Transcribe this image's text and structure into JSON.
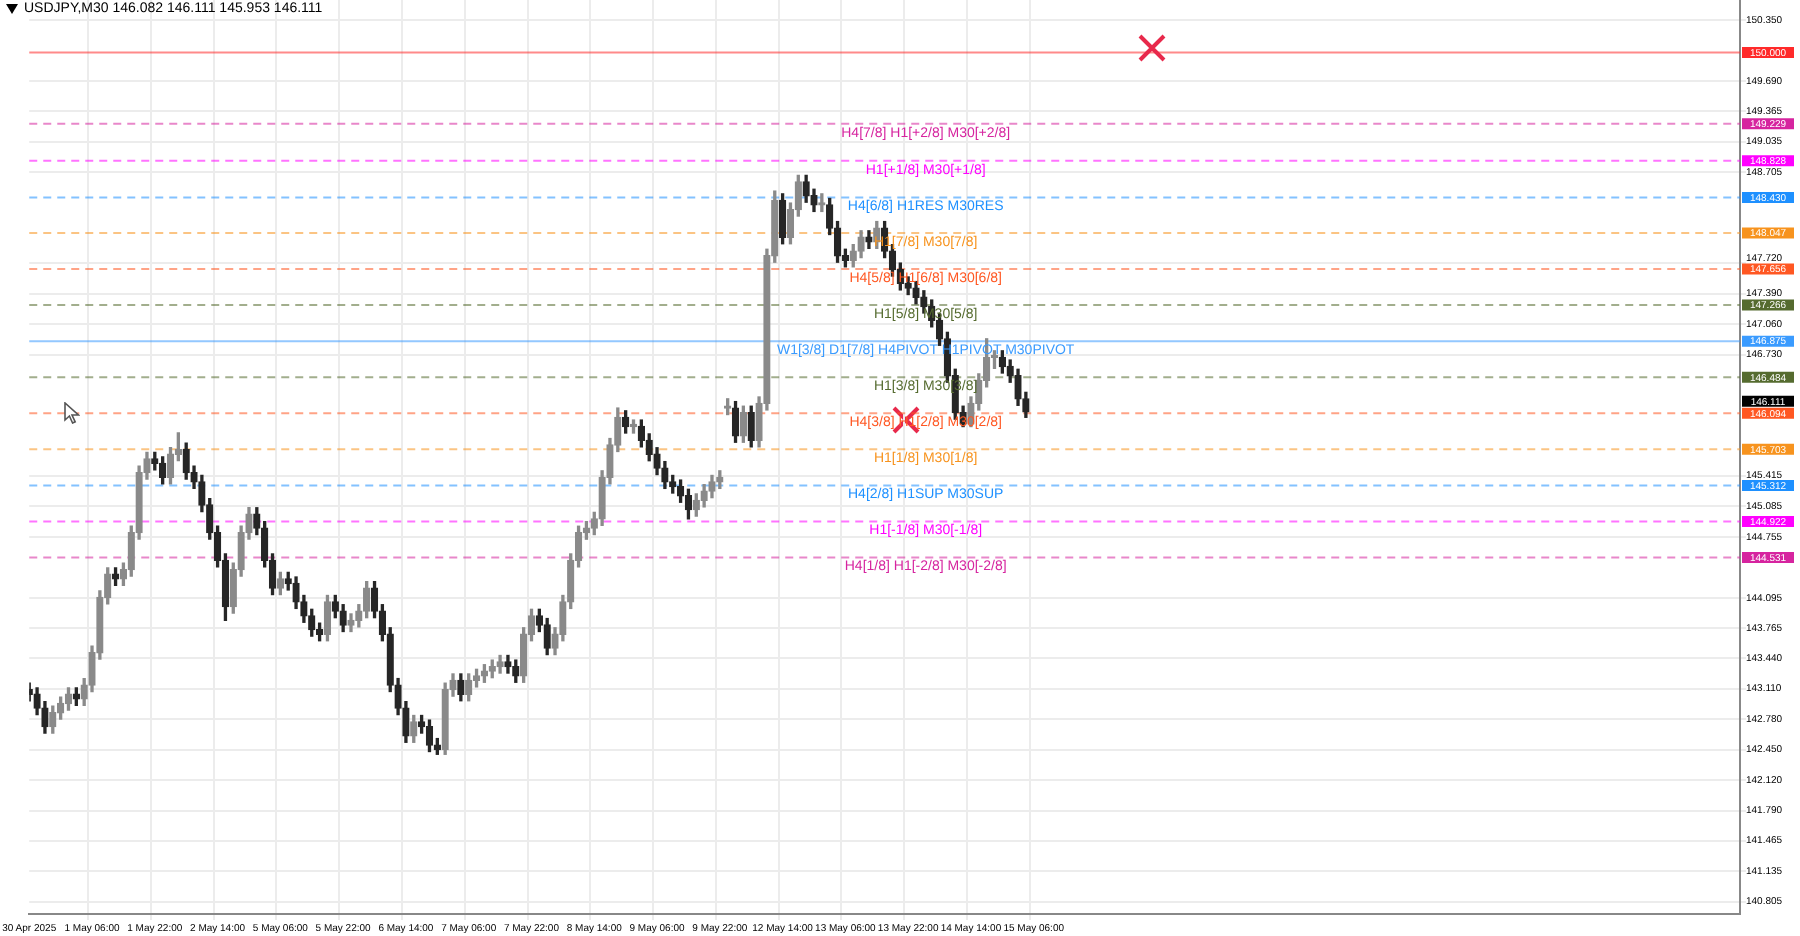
{
  "chart_data": {
    "type": "candlestick",
    "title": "USDJPY,M30  146.082 146.111 145.953 146.111",
    "colors": [
      "#262626",
      "#262626",
      "#262626",
      "#8a8a8a",
      "#8a8a8a",
      "#8a8a8a",
      "#262626",
      "#8a8a8a",
      "#8a8a8a",
      "#8a8a8a",
      "#8a8a8a",
      "#262626",
      "#8a8a8a",
      "#8a8a8a",
      "#8a8a8a",
      "#8a8a8a",
      "#262626",
      "#262626",
      "#8a8a8a",
      "#8a8a8a",
      "#262626",
      "#262626",
      "#262626",
      "#262626",
      "#262626",
      "#262626",
      "#8a8a8a",
      "#8a8a8a",
      "#8a8a8a",
      "#262626",
      "#262626",
      "#262626",
      "#8a8a8a",
      "#262626",
      "#262626",
      "#262626",
      "#262626",
      "#262626",
      "#8a8a8a",
      "#262626",
      "#262626",
      "#8a8a8a",
      "#8a8a8a",
      "#8a8a8a",
      "#262626",
      "#262626",
      "#262626",
      "#262626",
      "#262626",
      "#8a8a8a",
      "#262626",
      "#262626",
      "#262626",
      "#8a8a8a",
      "#8a8a8a",
      "#262626",
      "#8a8a8a",
      "#8a8a8a",
      "#8a8a8a",
      "#8a8a8a",
      "#8a8a8a",
      "#262626",
      "#262626",
      "#8a8a8a",
      "#8a8a8a",
      "#262626",
      "#262626",
      "#8a8a8a",
      "#8a8a8a",
      "#8a8a8a",
      "#8a8a8a",
      "#8a8a8a",
      "#8a8a8a",
      "#8a8a8a",
      "#8a8a8a",
      "#8a8a8a",
      "#262626",
      "#8a8a8a",
      "#262626",
      "#262626",
      "#262626",
      "#262626",
      "#262626",
      "#262626",
      "#262626",
      "#8a8a8a",
      "#8a8a8a",
      "#8a8a8a",
      "#8a8a8a",
      "#8a8a8a",
      "#262626",
      "#8a8a8a",
      "#262626",
      "#8a8a8a",
      "#8a8a8a",
      "#8a8a8a",
      "#262626",
      "#8a8a8a",
      "#8a8a8a",
      "#262626",
      "#262626",
      "#8a8a8a",
      "#262626",
      "#262626",
      "#262626",
      "#8a8a8a",
      "#8a8a8a",
      "#262626",
      "#8a8a8a",
      "#262626",
      "#262626",
      "#262626",
      "#262626",
      "#262626",
      "#262626",
      "#262626",
      "#262626",
      "#262626",
      "#262626",
      "#262626",
      "#8a8a8a",
      "#8a8a8a",
      "#8a8a8a",
      "#8a8a8a",
      "#262626",
      "#262626",
      "#262626",
      "#262626",
      null,
      null,
      null,
      null,
      null,
      null,
      null,
      null,
      null,
      null,
      null,
      null,
      null,
      null,
      null,
      null,
      null,
      null,
      null,
      null,
      null,
      null,
      null,
      null,
      null,
      null,
      null,
      null,
      null,
      null,
      null,
      null,
      null,
      null,
      null,
      null,
      null,
      null,
      null,
      null,
      null,
      null,
      null,
      null,
      null,
      null,
      null,
      null,
      null,
      null,
      null,
      null,
      null,
      null,
      null,
      null,
      null,
      null,
      null,
      null,
      null,
      null,
      null,
      null,
      null,
      null,
      null,
      null,
      null,
      null,
      null,
      null,
      null,
      null,
      null,
      null,
      null,
      null,
      null,
      null,
      null,
      null,
      null,
      null,
      null,
      null,
      null,
      null,
      null,
      null,
      null
    ],
    "categories": [
      "30 Apr 2025",
      null,
      null,
      null,
      null,
      null,
      null,
      null,
      "1 May 06:00",
      null,
      null,
      null,
      null,
      null,
      null,
      null,
      "1 May 22:00",
      null,
      null,
      null,
      null,
      null,
      null,
      null,
      "2 May 14:00",
      null,
      null,
      null,
      null,
      null,
      null,
      null,
      "5 May 06:00",
      null,
      null,
      null,
      null,
      null,
      null,
      null,
      "5 May 22:00",
      null,
      null,
      null,
      null,
      null,
      null,
      null,
      "6 May 14:00",
      null,
      null,
      null,
      null,
      null,
      null,
      null,
      "7 May 06:00",
      null,
      null,
      null,
      null,
      null,
      null,
      null,
      "7 May 22:00",
      null,
      null,
      null,
      null,
      null,
      null,
      null,
      "8 May 14:00",
      null,
      null,
      null,
      null,
      null,
      null,
      null,
      "9 May 06:00",
      null,
      null,
      null,
      null,
      null,
      null,
      null,
      "9 May 22:00",
      null,
      null,
      null,
      null,
      null,
      null,
      null,
      "12 May 14:00",
      null,
      null,
      null,
      null,
      null,
      null,
      null,
      "13 May 06:00",
      null,
      null,
      null,
      null,
      null,
      null,
      null,
      "13 May 22:00",
      null,
      null,
      null,
      null,
      null,
      null,
      null,
      "14 May 14:00",
      null,
      null,
      null,
      null,
      null,
      null,
      null,
      "15 May 06:00",
      null,
      null,
      null,
      null,
      null,
      null,
      null,
      null,
      null,
      null,
      null,
      null,
      null,
      null,
      null,
      null,
      null,
      null,
      null,
      null,
      null,
      null,
      null,
      null,
      null,
      null,
      null,
      null,
      null,
      null,
      null,
      null,
      null,
      null,
      null,
      null,
      null,
      null,
      null,
      null,
      null,
      null,
      null,
      null,
      null,
      null,
      null,
      null,
      null,
      null,
      null,
      null,
      null,
      null,
      null,
      null,
      null,
      null,
      null,
      null,
      null,
      null,
      null,
      null,
      null,
      null,
      null,
      null,
      null,
      null,
      null,
      null,
      null,
      null,
      null,
      null,
      null,
      null,
      null,
      null,
      null,
      null,
      null,
      null,
      null,
      null,
      null,
      null,
      null,
      null
    ],
    "ohlc": [
      [
        143.1,
        143.17,
        142.98,
        143.05
      ],
      [
        143.05,
        143.12,
        142.83,
        142.9
      ],
      [
        142.9,
        142.97,
        142.63,
        142.7
      ],
      [
        142.7,
        142.92,
        142.63,
        142.85
      ],
      [
        142.85,
        143.02,
        142.78,
        142.95
      ],
      [
        142.95,
        143.12,
        142.88,
        143.05
      ],
      [
        143.05,
        143.12,
        142.93,
        143.0
      ],
      [
        143.0,
        143.22,
        142.93,
        143.15
      ],
      [
        143.15,
        143.57,
        143.08,
        143.5
      ],
      [
        143.5,
        144.17,
        143.43,
        144.1
      ],
      [
        144.1,
        144.42,
        144.03,
        144.35
      ],
      [
        144.35,
        144.42,
        144.23,
        144.3
      ],
      [
        144.3,
        144.47,
        144.23,
        144.4
      ],
      [
        144.4,
        144.87,
        144.33,
        144.8
      ],
      [
        144.8,
        145.52,
        144.73,
        145.45
      ],
      [
        145.45,
        145.67,
        145.38,
        145.6
      ],
      [
        145.6,
        145.67,
        145.48,
        145.55
      ],
      [
        145.55,
        145.62,
        145.33,
        145.4
      ],
      [
        145.4,
        145.72,
        145.33,
        145.65
      ],
      [
        145.65,
        145.88,
        145.58,
        145.7
      ],
      [
        145.7,
        145.77,
        145.38,
        145.45
      ],
      [
        145.45,
        145.52,
        145.28,
        145.35
      ],
      [
        145.35,
        145.42,
        145.03,
        145.1
      ],
      [
        145.1,
        145.17,
        144.73,
        144.8
      ],
      [
        144.8,
        144.87,
        144.43,
        144.5
      ],
      [
        144.5,
        144.57,
        143.85,
        144.0
      ],
      [
        144.0,
        144.47,
        143.93,
        144.4
      ],
      [
        144.4,
        144.87,
        144.33,
        144.8
      ],
      [
        144.8,
        145.07,
        144.73,
        145.0
      ],
      [
        145.0,
        145.07,
        144.78,
        144.85
      ],
      [
        144.85,
        144.92,
        144.43,
        144.5
      ],
      [
        144.5,
        144.57,
        144.13,
        144.2
      ],
      [
        144.2,
        144.37,
        144.13,
        144.3
      ],
      [
        144.3,
        144.37,
        144.18,
        144.25
      ],
      [
        144.25,
        144.32,
        143.98,
        144.05
      ],
      [
        144.05,
        144.12,
        143.83,
        143.9
      ],
      [
        143.9,
        143.97,
        143.68,
        143.75
      ],
      [
        143.75,
        143.82,
        143.63,
        143.7
      ],
      [
        143.7,
        144.12,
        143.63,
        144.05
      ],
      [
        144.05,
        144.12,
        143.88,
        143.95
      ],
      [
        143.95,
        144.02,
        143.73,
        143.8
      ],
      [
        143.8,
        143.92,
        143.73,
        143.85
      ],
      [
        143.85,
        144.02,
        143.78,
        143.95
      ],
      [
        143.95,
        144.27,
        143.88,
        144.2
      ],
      [
        144.2,
        144.27,
        143.88,
        143.95
      ],
      [
        143.95,
        144.02,
        143.63,
        143.7
      ],
      [
        143.7,
        143.77,
        143.08,
        143.15
      ],
      [
        143.15,
        143.22,
        142.83,
        142.9
      ],
      [
        142.9,
        142.97,
        142.53,
        142.6
      ],
      [
        142.6,
        142.82,
        142.53,
        142.75
      ],
      [
        142.75,
        142.82,
        142.63,
        142.7
      ],
      [
        142.7,
        142.77,
        142.43,
        142.5
      ],
      [
        142.5,
        142.57,
        142.4,
        142.45
      ],
      [
        142.45,
        143.17,
        142.4,
        143.1
      ],
      [
        143.1,
        143.27,
        143.03,
        143.2
      ],
      [
        143.2,
        143.27,
        142.98,
        143.05
      ],
      [
        143.05,
        143.27,
        142.98,
        143.2
      ],
      [
        143.2,
        143.32,
        143.13,
        143.25
      ],
      [
        143.25,
        143.37,
        143.18,
        143.3
      ],
      [
        143.3,
        143.42,
        143.23,
        143.35
      ],
      [
        143.35,
        143.47,
        143.28,
        143.4
      ],
      [
        143.4,
        143.47,
        143.28,
        143.35
      ],
      [
        143.35,
        143.42,
        143.18,
        143.25
      ],
      [
        143.25,
        143.77,
        143.18,
        143.7
      ],
      [
        143.7,
        143.97,
        143.63,
        143.9
      ],
      [
        143.9,
        143.97,
        143.73,
        143.8
      ],
      [
        143.8,
        143.87,
        143.48,
        143.55
      ],
      [
        143.55,
        143.77,
        143.48,
        143.7
      ],
      [
        143.7,
        144.12,
        143.63,
        144.05
      ],
      [
        144.05,
        144.57,
        143.98,
        144.5
      ],
      [
        144.5,
        144.87,
        144.43,
        144.8
      ],
      [
        144.8,
        144.92,
        144.73,
        144.85
      ],
      [
        144.85,
        145.02,
        144.78,
        144.95
      ],
      [
        144.95,
        145.47,
        144.88,
        145.4
      ],
      [
        145.4,
        145.82,
        145.33,
        145.75
      ],
      [
        145.75,
        146.15,
        145.68,
        146.05
      ],
      [
        146.05,
        146.12,
        145.88,
        145.95
      ],
      [
        145.95,
        146.02,
        145.88,
        145.95
      ],
      [
        145.95,
        146.02,
        145.73,
        145.8
      ],
      [
        145.8,
        145.87,
        145.58,
        145.65
      ],
      [
        145.65,
        145.72,
        145.43,
        145.5
      ],
      [
        145.5,
        145.57,
        145.28,
        145.35
      ],
      [
        145.35,
        145.42,
        145.23,
        145.3
      ],
      [
        145.3,
        145.37,
        145.13,
        145.2
      ],
      [
        145.2,
        145.27,
        144.95,
        145.05
      ],
      [
        145.05,
        145.22,
        144.98,
        145.15
      ],
      [
        145.15,
        145.32,
        145.08,
        145.25
      ],
      [
        145.25,
        145.42,
        145.18,
        145.35
      ],
      [
        145.35,
        145.47,
        145.28,
        145.4
      ],
      [
        146.15,
        146.25,
        146.08,
        146.15
      ],
      [
        146.15,
        146.22,
        145.78,
        145.85
      ],
      [
        145.85,
        146.17,
        145.78,
        146.1
      ],
      [
        146.1,
        146.17,
        145.73,
        145.8
      ],
      [
        145.8,
        146.27,
        145.73,
        146.2
      ],
      [
        146.2,
        147.87,
        146.13,
        147.8
      ],
      [
        147.8,
        148.5,
        147.73,
        148.4
      ],
      [
        148.4,
        148.47,
        147.93,
        148.0
      ],
      [
        148.0,
        148.37,
        147.93,
        148.3
      ],
      [
        148.3,
        148.67,
        148.23,
        148.6
      ],
      [
        148.6,
        148.67,
        148.38,
        148.45
      ],
      [
        148.45,
        148.52,
        148.28,
        148.35
      ],
      [
        148.35,
        148.47,
        148.28,
        148.35
      ],
      [
        148.35,
        148.42,
        148.03,
        148.1
      ],
      [
        148.1,
        148.17,
        147.73,
        147.8
      ],
      [
        147.8,
        147.87,
        147.68,
        147.75
      ],
      [
        147.75,
        147.92,
        147.68,
        147.85
      ],
      [
        147.85,
        148.07,
        147.78,
        148.0
      ],
      [
        148.0,
        148.07,
        147.88,
        147.95
      ],
      [
        147.95,
        148.17,
        147.88,
        148.1
      ],
      [
        148.1,
        148.17,
        147.78,
        147.85
      ],
      [
        147.85,
        147.92,
        147.58,
        147.65
      ],
      [
        147.65,
        147.72,
        147.43,
        147.5
      ],
      [
        147.5,
        147.57,
        147.38,
        147.45
      ],
      [
        147.45,
        147.52,
        147.28,
        147.35
      ],
      [
        147.35,
        147.42,
        147.18,
        147.25
      ],
      [
        147.25,
        147.32,
        147.03,
        147.1
      ],
      [
        147.1,
        147.17,
        146.83,
        146.9
      ],
      [
        146.9,
        146.97,
        146.43,
        146.5
      ],
      [
        146.5,
        146.57,
        146.03,
        146.1
      ],
      [
        146.1,
        146.17,
        145.95,
        145.98
      ],
      [
        145.98,
        146.27,
        145.95,
        146.2
      ],
      [
        146.2,
        146.52,
        146.13,
        146.45
      ],
      [
        146.45,
        146.9,
        146.38,
        146.7
      ],
      [
        146.7,
        146.77,
        146.58,
        146.7
      ],
      [
        146.7,
        146.77,
        146.53,
        146.6
      ],
      [
        146.6,
        146.67,
        146.43,
        146.5
      ],
      [
        146.5,
        146.57,
        146.18,
        146.25
      ],
      [
        146.25,
        146.32,
        146.05,
        146.11
      ],
      null,
      null,
      null,
      null,
      null,
      null,
      null,
      null,
      null,
      null,
      null,
      null,
      null,
      null,
      null,
      null,
      null,
      null,
      null,
      null,
      null,
      null,
      null,
      null,
      null,
      null,
      null,
      null,
      null,
      null,
      null,
      null,
      null,
      null,
      null,
      null,
      null,
      null,
      null,
      null,
      null,
      null,
      null,
      null,
      null,
      null,
      null,
      null,
      null,
      null,
      null,
      null,
      null,
      null,
      null,
      null,
      null,
      null,
      null,
      null,
      null,
      null,
      null,
      null,
      null,
      null,
      null,
      null,
      null,
      null,
      null,
      null,
      null,
      null,
      null,
      null,
      null,
      null,
      null,
      null,
      null,
      null,
      null,
      null,
      null,
      null,
      null,
      null,
      null,
      null,
      null
    ],
    "ylim": [
      140.67,
      150.57
    ],
    "yticks": [
      {
        "value": 150.35,
        "label": "150.350"
      },
      {
        "value": 149.69,
        "label": "149.690"
      },
      {
        "value": 149.365,
        "label": "149.365"
      },
      {
        "value": 149.035,
        "label": "149.035"
      },
      {
        "value": 148.705,
        "label": "148.705"
      },
      {
        "value": 147.72,
        "label": "147.720"
      },
      {
        "value": 147.39,
        "label": "147.390"
      },
      {
        "value": 147.06,
        "label": "147.060"
      },
      {
        "value": 146.73,
        "label": "146.730"
      },
      {
        "value": 145.415,
        "label": "145.415"
      },
      {
        "value": 145.085,
        "label": "145.085"
      },
      {
        "value": 144.755,
        "label": "144.755"
      },
      {
        "value": 144.095,
        "label": "144.095"
      },
      {
        "value": 143.765,
        "label": "143.765"
      },
      {
        "value": 143.44,
        "label": "143.440"
      },
      {
        "value": 143.11,
        "label": "143.110"
      },
      {
        "value": 142.78,
        "label": "142.780"
      },
      {
        "value": 142.45,
        "label": "142.450"
      },
      {
        "value": 142.12,
        "label": "142.120"
      },
      {
        "value": 141.79,
        "label": "141.790"
      },
      {
        "value": 141.465,
        "label": "141.465"
      },
      {
        "value": 141.135,
        "label": "141.135"
      },
      {
        "value": 140.805,
        "label": "140.805"
      }
    ],
    "grid": true,
    "ref_lines": [
      {
        "axis": "y",
        "value": 150.0,
        "label": null,
        "color": "#ff2a2a",
        "line_style": "solid"
      },
      {
        "axis": "y",
        "value": 149.229,
        "label": "H4[7/8] H1[+2/8] M30[+2/8]",
        "color": "#d6249f",
        "line_style": "dashed"
      },
      {
        "axis": "y",
        "value": 148.828,
        "label": "H1[+1/8] M30[+1/8]",
        "color": "#ff00ff",
        "line_style": "dashed"
      },
      {
        "axis": "y",
        "value": 148.43,
        "label": "H4[6/8] H1RES M30RES",
        "color": "#1e90ff",
        "line_style": "dashed"
      },
      {
        "axis": "y",
        "value": 148.047,
        "label": "H1[7/8] M30[7/8]",
        "color": "#f7931e",
        "line_style": "dashed"
      },
      {
        "axis": "y",
        "value": 147.656,
        "label": "H4[5/8] H1[6/8] M30[6/8]",
        "color": "#ff5722",
        "line_style": "dashed"
      },
      {
        "axis": "y",
        "value": 147.266,
        "label": "H1[5/8] M30[5/8]",
        "color": "#556b2f",
        "line_style": "dashed"
      },
      {
        "axis": "y",
        "value": 146.875,
        "label": "W1[3/8] D1[7/8] H4PIVOT H1PIVOT M30PIVOT",
        "color": "#3a9bff",
        "line_style": "solid"
      },
      {
        "axis": "y",
        "value": 146.484,
        "label": "H1[3/8] M30[3/8]",
        "color": "#556b2f",
        "line_style": "dashed"
      },
      {
        "axis": "y",
        "value": 146.094,
        "label": "H4[3/8] H1[2/8] M30[2/8]",
        "color": "#ff5722",
        "line_style": "dashed"
      },
      {
        "axis": "y",
        "value": 145.703,
        "label": "H1[1/8] M30[1/8]",
        "color": "#f7931e",
        "line_style": "dashed"
      },
      {
        "axis": "y",
        "value": 145.312,
        "label": "H4[2/8] H1SUP M30SUP",
        "color": "#1e90ff",
        "line_style": "dashed"
      },
      {
        "axis": "y",
        "value": 144.922,
        "label": "H1[-1/8] M30[-1/8]",
        "color": "#ff00ff",
        "line_style": "dashed"
      },
      {
        "axis": "y",
        "value": 144.531,
        "label": "H4[1/8] H1[-2/8] M30[-2/8]",
        "color": "#d6249f",
        "line_style": "dashed"
      }
    ],
    "annotations": [
      "150.000",
      "149.229",
      "148.828",
      "148.430",
      "148.047",
      "147.656",
      "147.266",
      "146.875",
      "146.484",
      "146.094",
      "145.703",
      "145.312",
      "144.922",
      "144.531",
      "146.111"
    ],
    "legend": false
  }
}
